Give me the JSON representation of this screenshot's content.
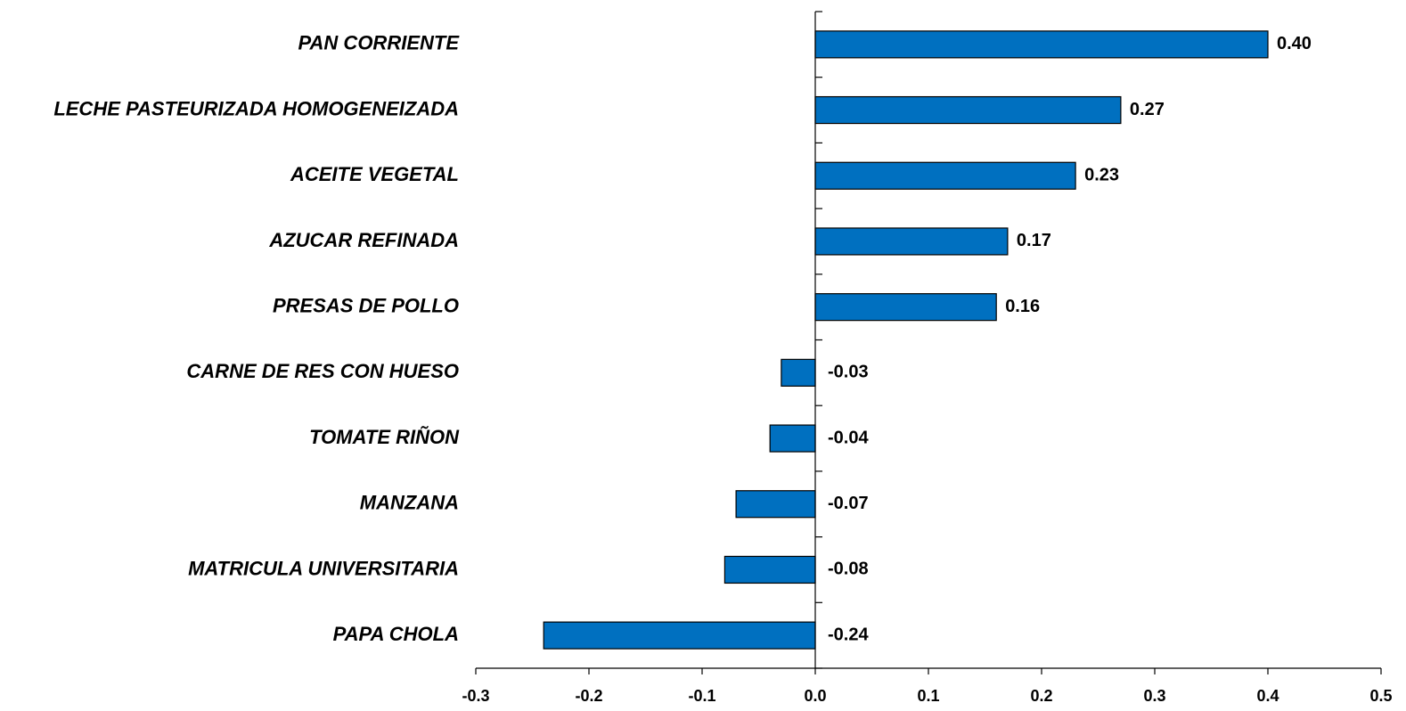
{
  "chart_data": {
    "type": "barh",
    "categories": [
      "PAN CORRIENTE",
      "LECHE PASTEURIZADA HOMOGENEIZADA",
      "ACEITE VEGETAL",
      "AZUCAR REFINADA",
      "PRESAS DE POLLO",
      "CARNE DE RES CON HUESO",
      "TOMATE RIÑON",
      "MANZANA",
      "MATRICULA UNIVERSITARIA",
      "PAPA CHOLA"
    ],
    "values": [
      0.4,
      0.27,
      0.23,
      0.17,
      0.16,
      -0.03,
      -0.04,
      -0.07,
      -0.08,
      -0.24
    ],
    "value_labels": [
      "0.40",
      "0.27",
      "0.23",
      "0.17",
      "0.16",
      "-0.03",
      "-0.04",
      "-0.07",
      "-0.08",
      "-0.24"
    ],
    "color": "#0070c0",
    "xlim": [
      -0.3,
      0.5
    ],
    "xticks": [
      -0.3,
      -0.2,
      -0.1,
      {
        "value": 0,
        "label": "0.0"
      },
      0.1,
      0.2,
      0.3,
      0.4,
      0.5
    ],
    "grid": false
  }
}
